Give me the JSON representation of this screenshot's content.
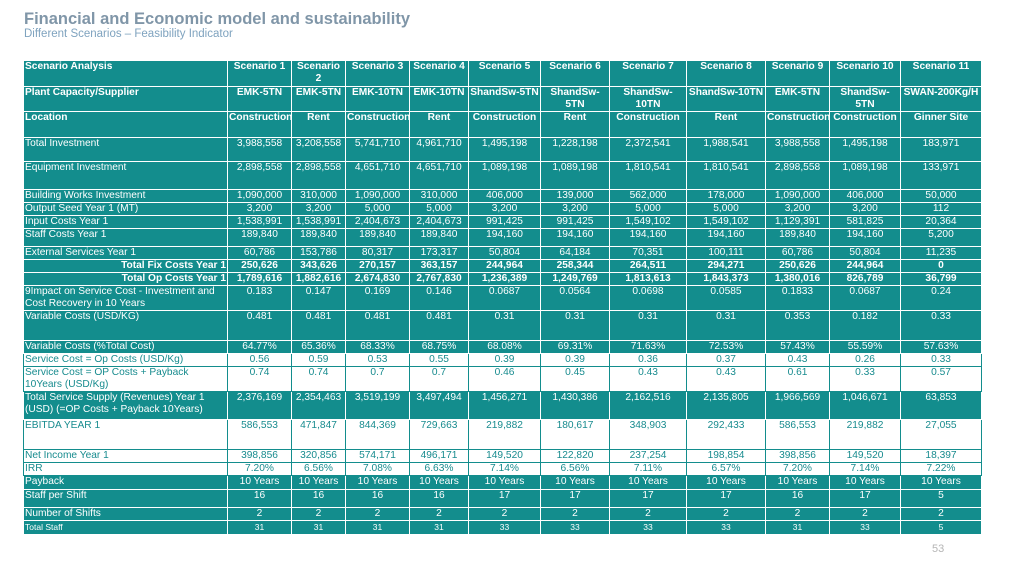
{
  "header": {
    "title": "Financial and Economic model and sustainability",
    "subtitle": "Different Scenarios – Feasibility Indicator"
  },
  "page_number": "53",
  "table": {
    "header_label": "Scenario Analysis",
    "columns": [
      "Scenario 1",
      "Scenario 2",
      "Scenario 3",
      "Scenario 4",
      "Scenario 5",
      "Scenario 6",
      "Scenario 7",
      "Scenario 8",
      "Scenario 9",
      "Scenario 10",
      "Scenario 11"
    ],
    "rows": [
      {
        "label": "Plant Capacity/Supplier",
        "values": [
          "EMK-5TN",
          "EMK-5TN",
          "EMK-10TN",
          "EMK-10TN",
          "ShandSw-5TN",
          "ShandSw-5TN",
          "ShandSw-10TN",
          "ShandSw-10TN",
          "EMK-5TN",
          "ShandSw-5TN",
          "SWAN-200Kg/H"
        ]
      },
      {
        "label": "Location",
        "values": [
          "Construction",
          "Rent",
          "Construction",
          "Rent",
          "Construction",
          "Rent",
          "Construction",
          "Rent",
          "Construction",
          "Construction",
          "Ginner Site"
        ]
      },
      {
        "label": "Total Investment",
        "values": [
          "3,988,558",
          "3,208,558",
          "5,741,710",
          "4,961,710",
          "1,495,198",
          "1,228,198",
          "2,372,541",
          "1,988,541",
          "3,988,558",
          "1,495,198",
          "183,971"
        ]
      },
      {
        "label": "Equipment Investment",
        "values": [
          "2,898,558",
          "2,898,558",
          "4,651,710",
          "4,651,710",
          "1,089,198",
          "1,089,198",
          "1,810,541",
          "1,810,541",
          "2,898,558",
          "1,089,198",
          "133,971"
        ]
      },
      {
        "label": "Building Works Investment",
        "values": [
          "1,090,000",
          "310,000",
          "1,090,000",
          "310,000",
          "406,000",
          "139,000",
          "562,000",
          "178,000",
          "1,090,000",
          "406,000",
          "50,000"
        ]
      },
      {
        "label": "Output Seed Year 1 (MT)",
        "values": [
          "3,200",
          "3,200",
          "5,000",
          "5,000",
          "3,200",
          "3,200",
          "5,000",
          "5,000",
          "3,200",
          "3,200",
          "112"
        ]
      },
      {
        "label": "Input Costs Year 1",
        "values": [
          "1,538,991",
          "1,538,991",
          "2,404,673",
          "2,404,673",
          "991,425",
          "991,425",
          "1,549,102",
          "1,549,102",
          "1,129,391",
          "581,825",
          "20,364"
        ]
      },
      {
        "label": "Staff Costs Year 1",
        "values": [
          "189,840",
          "189,840",
          "189,840",
          "189,840",
          "194,160",
          "194,160",
          "194,160",
          "194,160",
          "189,840",
          "194,160",
          "5,200"
        ]
      },
      {
        "label": "External Services Year 1",
        "values": [
          "60,786",
          "153,786",
          "80,317",
          "173,317",
          "50,804",
          "64,184",
          "70,351",
          "100,111",
          "60,786",
          "50,804",
          "11,235"
        ]
      },
      {
        "label": "Total Fix Costs Year 1",
        "values": [
          "250,626",
          "343,626",
          "270,157",
          "363,157",
          "244,964",
          "258,344",
          "264,511",
          "294,271",
          "250,626",
          "244,964",
          "0"
        ]
      },
      {
        "label": "Total Op Costs Year 1",
        "values": [
          "1,789,616",
          "1,882,616",
          "2,674,830",
          "2,767,830",
          "1,236,389",
          "1,249,769",
          "1,813,613",
          "1,843,373",
          "1,380,016",
          "826,789",
          "36,799"
        ]
      },
      {
        "label": "9Impact on Service Cost - Investment and Cost Recovery in 10 Years",
        "values": [
          "0.183",
          "0.147",
          "0.169",
          "0.146",
          "0.0687",
          "0.0564",
          "0.0698",
          "0.0585",
          "0.1833",
          "0.0687",
          "0.24"
        ]
      },
      {
        "label": "Variable Costs (USD/KG)",
        "values": [
          "0.481",
          "0.481",
          "0.481",
          "0.481",
          "0.31",
          "0.31",
          "0.31",
          "0.31",
          "0.353",
          "0.182",
          "0.33"
        ]
      },
      {
        "label": "Variable Costs (%Total Cost)",
        "values": [
          "64.77%",
          "65.36%",
          "68.33%",
          "68.75%",
          "68.08%",
          "69.31%",
          "71.63%",
          "72.53%",
          "57.43%",
          "55.59%",
          "57.63%"
        ]
      },
      {
        "label": "Service Cost = Op Costs (USD/Kg)",
        "values": [
          "0.56",
          "0.59",
          "0.53",
          "0.55",
          "0.39",
          "0.39",
          "0.36",
          "0.37",
          "0.43",
          "0.26",
          "0.33"
        ]
      },
      {
        "label": "Service Cost = OP Costs + Payback 10Years (USD/Kg)",
        "values": [
          "0.74",
          "0.74",
          "0.7",
          "0.7",
          "0.46",
          "0.45",
          "0.43",
          "0.43",
          "0.61",
          "0.33",
          "0.57"
        ]
      },
      {
        "label": "Total Service Supply (Revenues) Year 1 (USD) (=OP Costs + Payback 10Years)",
        "values": [
          "2,376,169",
          "2,354,463",
          "3,519,199",
          "3,497,494",
          "1,456,271",
          "1,430,386",
          "2,162,516",
          "2,135,805",
          "1,966,569",
          "1,046,671",
          "63,853"
        ]
      },
      {
        "label": "EBITDA YEAR 1",
        "values": [
          "586,553",
          "471,847",
          "844,369",
          "729,663",
          "219,882",
          "180,617",
          "348,903",
          "292,433",
          "586,553",
          "219,882",
          "27,055"
        ]
      },
      {
        "label": "Net  Income Year 1",
        "values": [
          "398,856",
          "320,856",
          "574,171",
          "496,171",
          "149,520",
          "122,820",
          "237,254",
          "198,854",
          "398,856",
          "149,520",
          "18,397"
        ]
      },
      {
        "label": "IRR",
        "values": [
          "7.20%",
          "6.56%",
          "7.08%",
          "6.63%",
          "7.14%",
          "6.56%",
          "7.11%",
          "6.57%",
          "7.20%",
          "7.14%",
          "7.22%"
        ]
      },
      {
        "label": "Payback",
        "values": [
          "10 Years",
          "10 Years",
          "10 Years",
          "10 Years",
          "10 Years",
          "10 Years",
          "10 Years",
          "10 Years",
          "10 Years",
          "10 Years",
          "10 Years"
        ]
      },
      {
        "label": "Staff per Shift",
        "values": [
          "16",
          "16",
          "16",
          "16",
          "17",
          "17",
          "17",
          "17",
          "16",
          "17",
          "5"
        ]
      },
      {
        "label": "Number of Shifts",
        "values": [
          "2",
          "2",
          "2",
          "2",
          "2",
          "2",
          "2",
          "2",
          "2",
          "2",
          "2"
        ]
      },
      {
        "label": "Total Staff",
        "values": [
          "31",
          "31",
          "31",
          "31",
          "33",
          "33",
          "33",
          "33",
          "31",
          "33",
          "5"
        ]
      }
    ]
  }
}
